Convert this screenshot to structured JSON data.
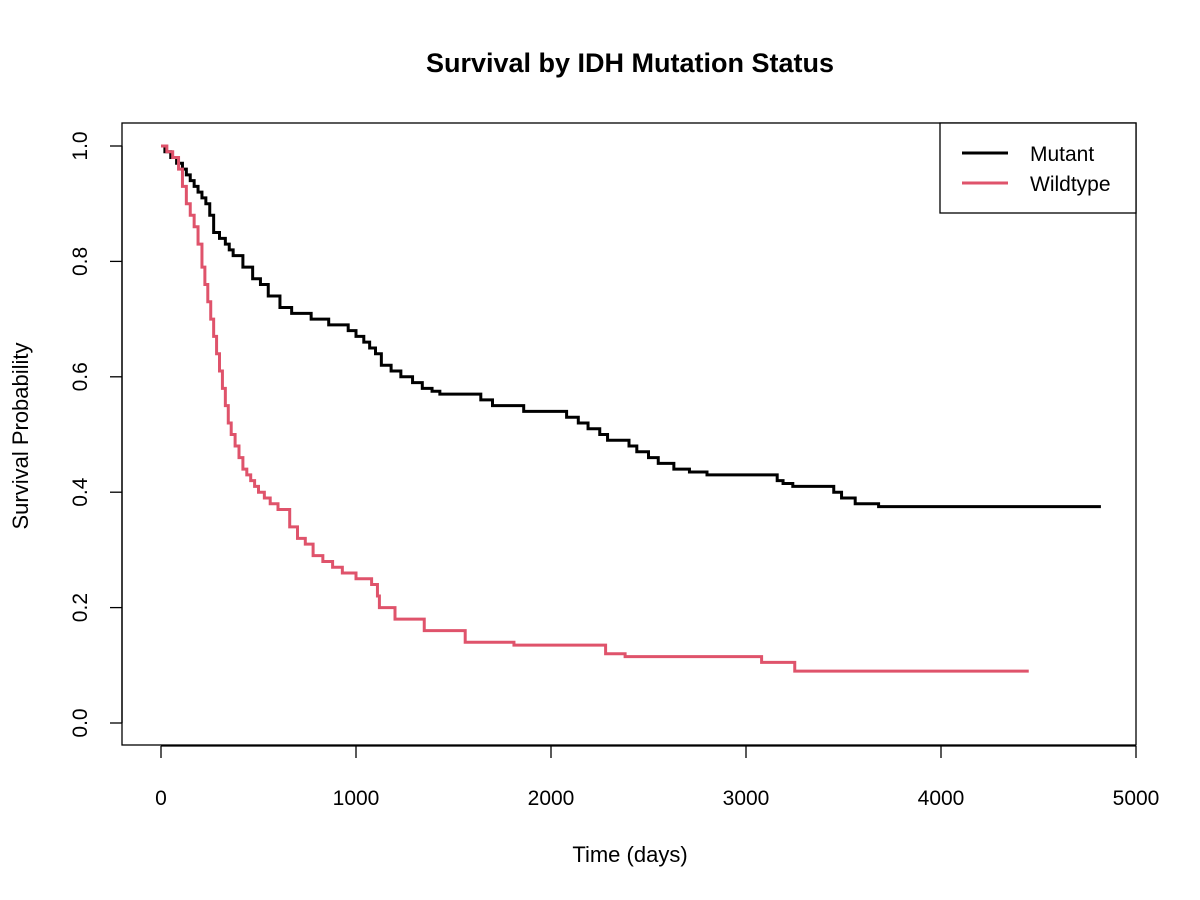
{
  "chart_data": {
    "type": "line",
    "step": true,
    "title": "Survival by IDH Mutation Status",
    "xlabel": "Time (days)",
    "ylabel": "Survival Probability",
    "xlim": [
      0,
      5000
    ],
    "ylim": [
      0.0,
      1.0
    ],
    "x_ticks": [
      0,
      1000,
      2000,
      3000,
      4000,
      5000
    ],
    "x_tick_labels": [
      "0",
      "1000",
      "2000",
      "3000",
      "4000",
      "5000"
    ],
    "y_ticks": [
      0.0,
      0.2,
      0.4,
      0.6,
      0.8,
      1.0
    ],
    "y_tick_labels": [
      "0.0",
      "0.2",
      "0.4",
      "0.6",
      "0.8",
      "1.0"
    ],
    "grid": false,
    "legend_position": "top-right",
    "series": [
      {
        "name": "Mutant",
        "color": "#000000",
        "x": [
          0,
          20,
          50,
          80,
          110,
          130,
          150,
          170,
          190,
          210,
          230,
          250,
          270,
          300,
          330,
          350,
          370,
          420,
          470,
          510,
          550,
          610,
          670,
          770,
          860,
          960,
          1000,
          1040,
          1070,
          1100,
          1130,
          1180,
          1230,
          1290,
          1340,
          1390,
          1430,
          1500,
          1640,
          1700,
          1860,
          2080,
          2140,
          2190,
          2250,
          2290,
          2400,
          2440,
          2500,
          2550,
          2630,
          2710,
          2800,
          3000,
          3160,
          3190,
          3240,
          3450,
          3490,
          3560,
          3680,
          4820
        ],
        "y": [
          1.0,
          0.99,
          0.98,
          0.97,
          0.96,
          0.95,
          0.94,
          0.93,
          0.92,
          0.91,
          0.9,
          0.88,
          0.85,
          0.84,
          0.83,
          0.82,
          0.81,
          0.79,
          0.77,
          0.76,
          0.74,
          0.72,
          0.71,
          0.7,
          0.69,
          0.68,
          0.67,
          0.66,
          0.65,
          0.64,
          0.62,
          0.61,
          0.6,
          0.59,
          0.58,
          0.575,
          0.57,
          0.57,
          0.56,
          0.55,
          0.54,
          0.53,
          0.52,
          0.51,
          0.5,
          0.49,
          0.48,
          0.47,
          0.46,
          0.45,
          0.44,
          0.435,
          0.43,
          0.43,
          0.42,
          0.415,
          0.41,
          0.4,
          0.39,
          0.38,
          0.375,
          0.375
        ]
      },
      {
        "name": "Wildtype",
        "color": "#DF536B",
        "x": [
          0,
          30,
          60,
          90,
          110,
          130,
          150,
          170,
          190,
          210,
          225,
          240,
          255,
          270,
          285,
          300,
          315,
          330,
          345,
          360,
          380,
          400,
          420,
          440,
          460,
          480,
          500,
          530,
          560,
          600,
          660,
          700,
          740,
          780,
          830,
          880,
          930,
          1000,
          1080,
          1110,
          1120,
          1200,
          1350,
          1560,
          1810,
          2280,
          2380,
          3080,
          3250,
          4450
        ],
        "y": [
          1.0,
          0.99,
          0.98,
          0.96,
          0.93,
          0.9,
          0.88,
          0.86,
          0.83,
          0.79,
          0.76,
          0.73,
          0.7,
          0.67,
          0.64,
          0.61,
          0.58,
          0.55,
          0.52,
          0.5,
          0.48,
          0.46,
          0.44,
          0.43,
          0.42,
          0.41,
          0.4,
          0.39,
          0.38,
          0.37,
          0.34,
          0.32,
          0.31,
          0.29,
          0.28,
          0.27,
          0.26,
          0.25,
          0.24,
          0.22,
          0.2,
          0.18,
          0.16,
          0.14,
          0.135,
          0.12,
          0.115,
          0.105,
          0.09,
          0.09
        ]
      }
    ]
  }
}
